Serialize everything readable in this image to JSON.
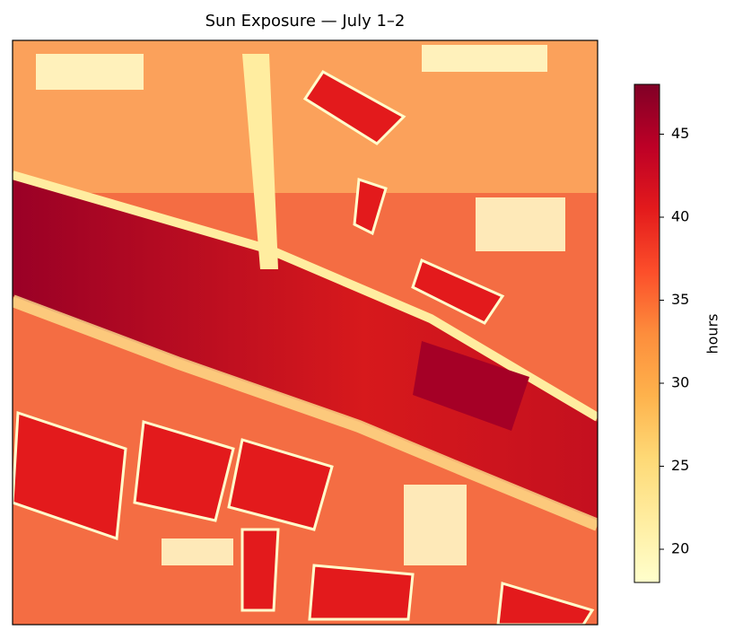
{
  "chart_data": {
    "type": "heatmap",
    "title": "Sun Exposure — July 1–2",
    "colorbar": {
      "label": "hours",
      "lim": [
        18,
        48
      ],
      "ticks": [
        20,
        25,
        30,
        35,
        40,
        45
      ],
      "colormap": [
        "#ffffcc",
        "#ffeda0",
        "#fed976",
        "#feb24c",
        "#fd8d3c",
        "#fc4e2a",
        "#e31a1c",
        "#bd0026",
        "#800026"
      ]
    }
  }
}
